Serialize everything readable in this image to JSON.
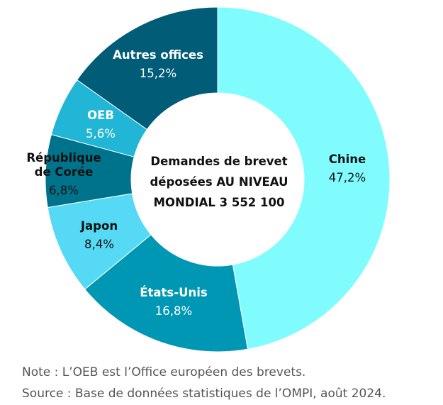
{
  "chart_data": {
    "type": "pie",
    "style": "donut",
    "center_label": [
      "Demandes de brevet",
      "déposées AU NIVEAU",
      "MONDIAL 3 552 100"
    ],
    "slices": [
      {
        "name": "Chine",
        "value": 47.2,
        "label": "47,2%",
        "color": "#80FCFF",
        "text_color": "#111111",
        "name_lines": [
          "Chine"
        ]
      },
      {
        "name": "États-Unis",
        "value": 16.8,
        "label": "16,8%",
        "color": "#0097B5",
        "text_color": "#FFFFFF",
        "name_lines": [
          "États-Unis"
        ]
      },
      {
        "name": "Japon",
        "value": 8.4,
        "label": "8,4%",
        "color": "#55D9F5",
        "text_color": "#111111",
        "name_lines": [
          "Japon"
        ]
      },
      {
        "name": "République de Corée",
        "value": 6.8,
        "label": "6,8%",
        "color": "#00738C",
        "text_color": "#111111",
        "name_lines": [
          "République",
          "de Corée"
        ]
      },
      {
        "name": "OEB",
        "value": 5.6,
        "label": "5,6%",
        "color": "#22B6D6",
        "text_color": "#FFFFFF",
        "name_lines": [
          "OEB"
        ]
      },
      {
        "name": "Autres offices",
        "value": 15.2,
        "label": "15,2%",
        "color": "#005C77",
        "text_color": "#FFFFFF",
        "name_lines": [
          "Autres offices"
        ]
      }
    ]
  },
  "notes": {
    "note": "Note : L’OEB est l’Office européen des brevets.",
    "source": "Source : Base de données statistiques de l’OMPI, août 2024."
  }
}
